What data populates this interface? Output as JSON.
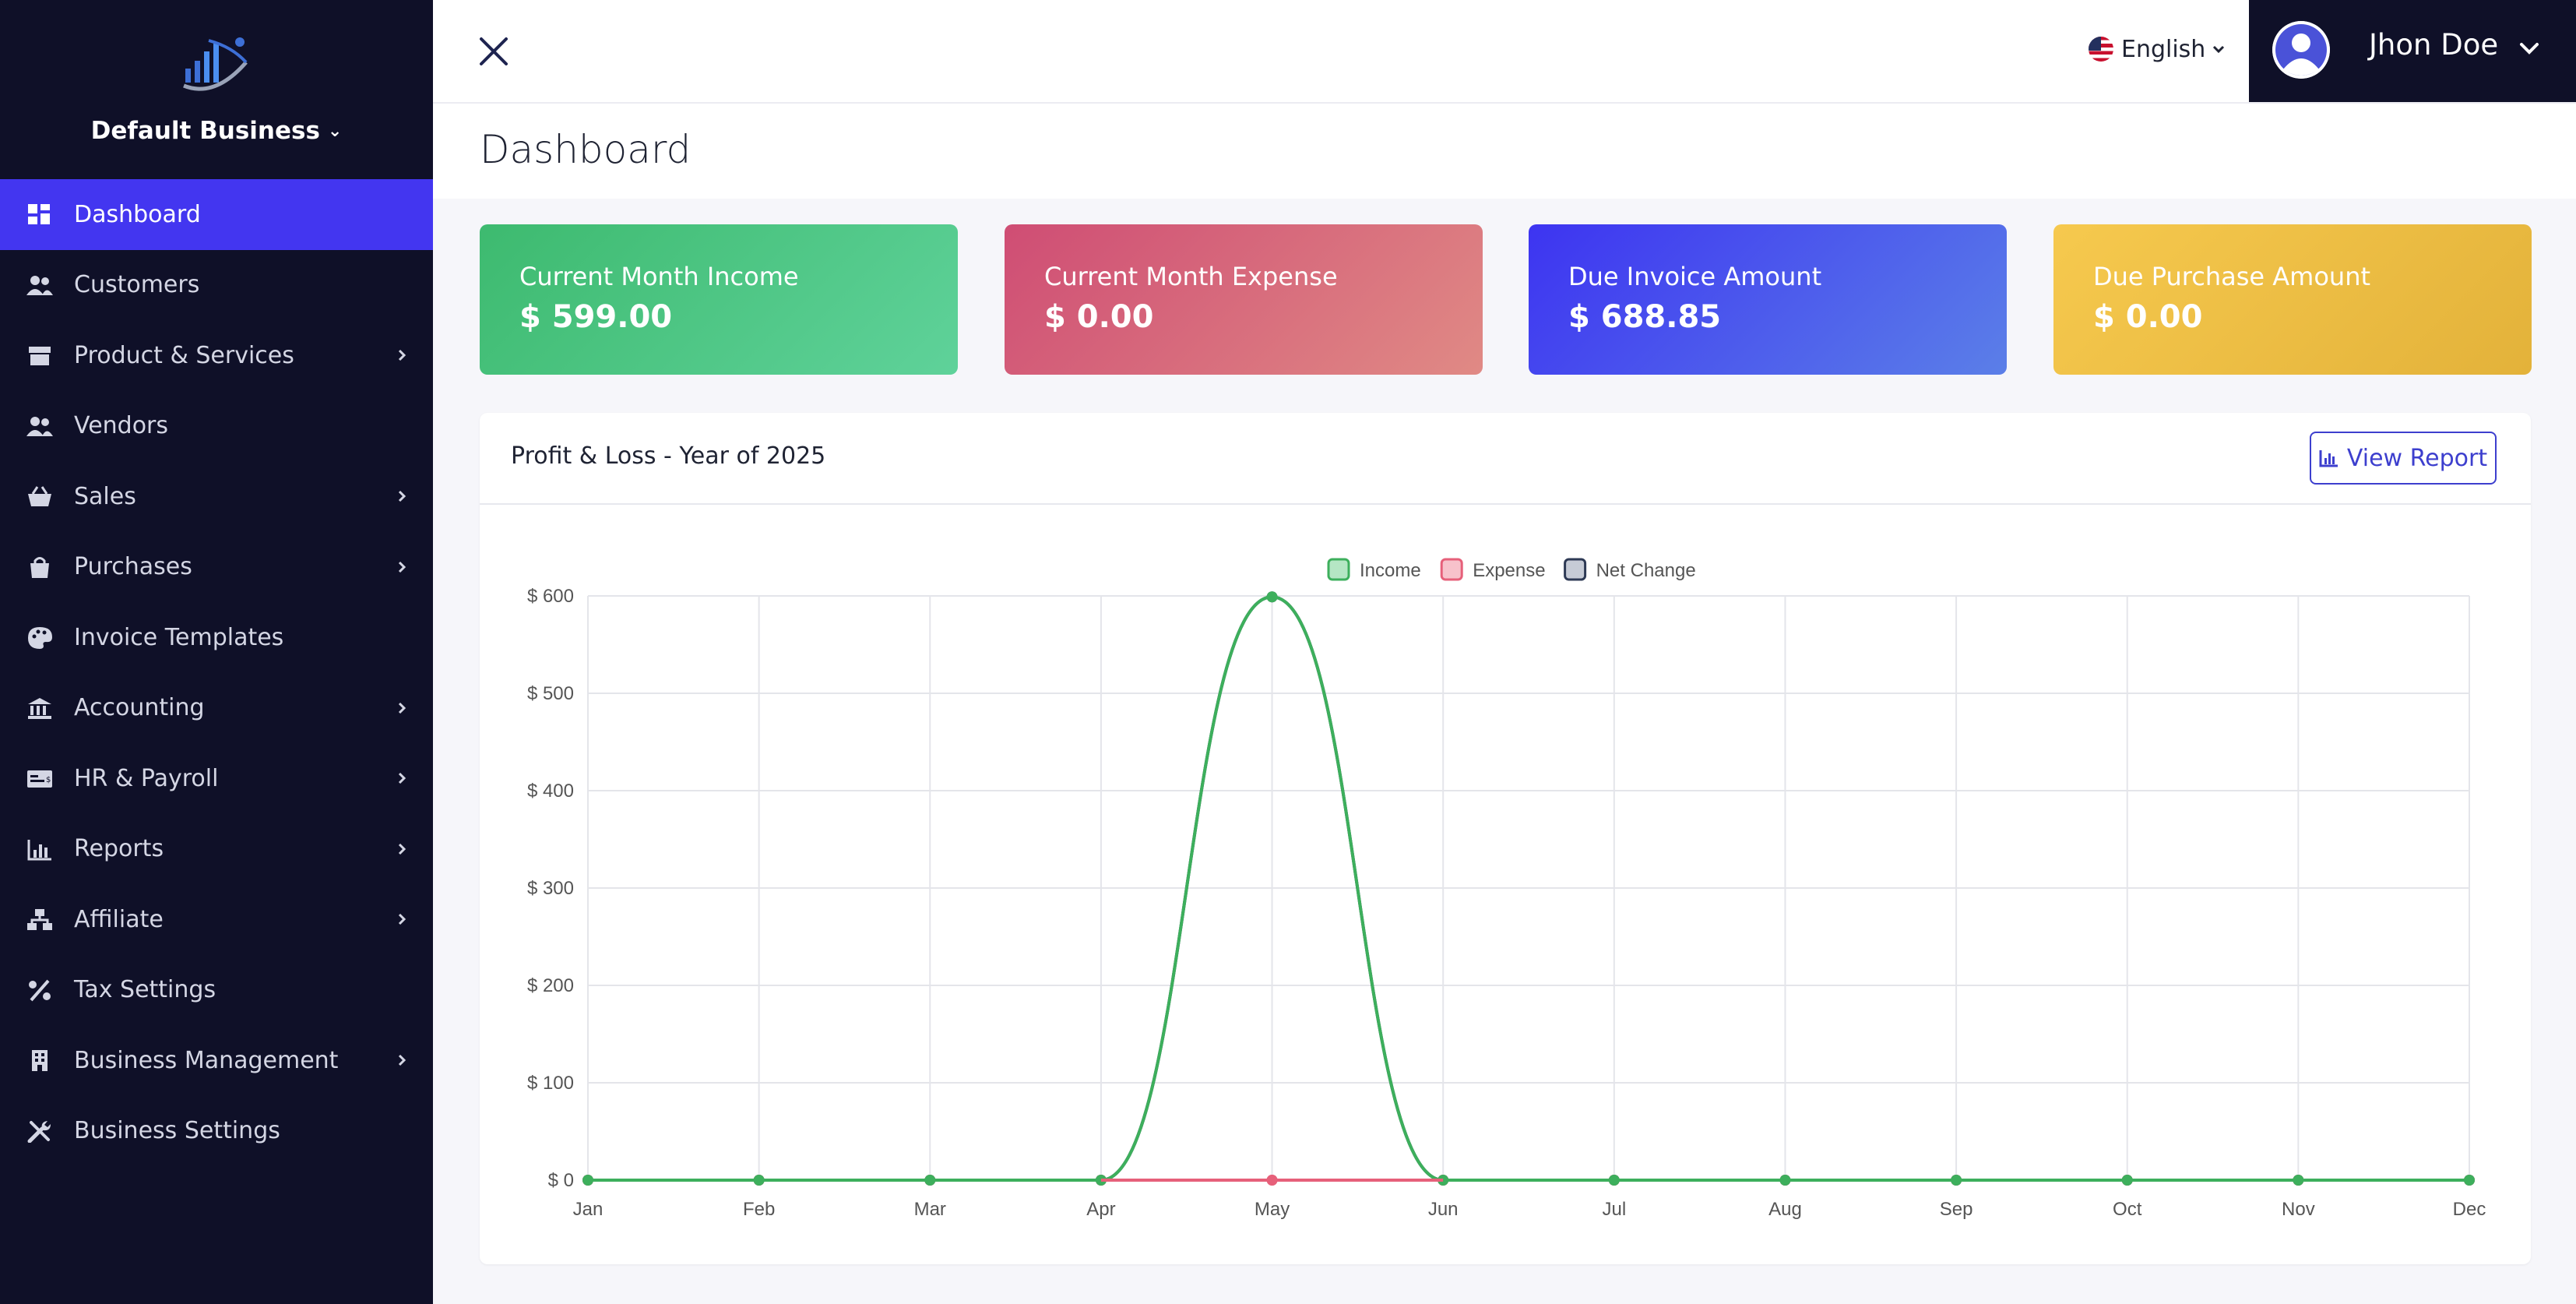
{
  "sidebar": {
    "business_name": "Default Business",
    "items": [
      {
        "label": "Dashboard",
        "icon": "grid-icon",
        "active": true,
        "has_submenu": false
      },
      {
        "label": "Customers",
        "icon": "users-icon",
        "active": false,
        "has_submenu": false
      },
      {
        "label": "Product & Services",
        "icon": "box-icon",
        "active": false,
        "has_submenu": true
      },
      {
        "label": "Vendors",
        "icon": "users-icon",
        "active": false,
        "has_submenu": false
      },
      {
        "label": "Sales",
        "icon": "basket-icon",
        "active": false,
        "has_submenu": true
      },
      {
        "label": "Purchases",
        "icon": "bag-icon",
        "active": false,
        "has_submenu": true
      },
      {
        "label": "Invoice Templates",
        "icon": "palette-icon",
        "active": false,
        "has_submenu": false
      },
      {
        "label": "Accounting",
        "icon": "bank-icon",
        "active": false,
        "has_submenu": true
      },
      {
        "label": "HR & Payroll",
        "icon": "money-check-icon",
        "active": false,
        "has_submenu": true
      },
      {
        "label": "Reports",
        "icon": "bar-chart-icon",
        "active": false,
        "has_submenu": true
      },
      {
        "label": "Affiliate",
        "icon": "network-icon",
        "active": false,
        "has_submenu": true
      },
      {
        "label": "Tax Settings",
        "icon": "percent-icon",
        "active": false,
        "has_submenu": false
      },
      {
        "label": "Business Management",
        "icon": "building-icon",
        "active": false,
        "has_submenu": true
      },
      {
        "label": "Business Settings",
        "icon": "tools-icon",
        "active": false,
        "has_submenu": false
      }
    ]
  },
  "topbar": {
    "language": "English",
    "user_name": "Jhon Doe"
  },
  "page": {
    "title": "Dashboard"
  },
  "cards": [
    {
      "label": "Current Month Income",
      "value": "$ 599.00"
    },
    {
      "label": "Current Month Expense",
      "value": "$ 0.00"
    },
    {
      "label": "Due Invoice Amount",
      "value": "$ 688.85"
    },
    {
      "label": "Due Purchase Amount",
      "value": "$ 0.00"
    }
  ],
  "panel": {
    "title": "Profit & Loss - Year of 2025",
    "button_label": "View Report"
  },
  "chart_data": {
    "type": "line",
    "categories": [
      "Jan",
      "Feb",
      "Mar",
      "Apr",
      "May",
      "Jun",
      "Jul",
      "Aug",
      "Sep",
      "Oct",
      "Nov",
      "Dec"
    ],
    "series": [
      {
        "name": "Income",
        "values": [
          0,
          0,
          0,
          0,
          599,
          0,
          0,
          0,
          0,
          0,
          0,
          0
        ],
        "color": "#3daf5c",
        "fill": "#b5e6c4"
      },
      {
        "name": "Expense",
        "values": [
          0,
          0,
          0,
          0,
          0,
          0,
          0,
          0,
          0,
          0,
          0,
          0
        ],
        "color": "#e6607a",
        "fill": "#f7c2cb"
      },
      {
        "name": "Net Change",
        "values": [
          0,
          0,
          0,
          0,
          599,
          0,
          0,
          0,
          0,
          0,
          0,
          0
        ],
        "color": "#2e3a55",
        "fill": "#c6cbd6"
      }
    ],
    "ylim": [
      0,
      600
    ],
    "yticks": [
      0,
      100,
      200,
      300,
      400,
      500,
      600
    ],
    "ytick_labels": [
      "$ 0",
      "$ 100",
      "$ 200",
      "$ 300",
      "$ 400",
      "$ 500",
      "$ 600"
    ],
    "grid": true,
    "legend": "top-center"
  }
}
